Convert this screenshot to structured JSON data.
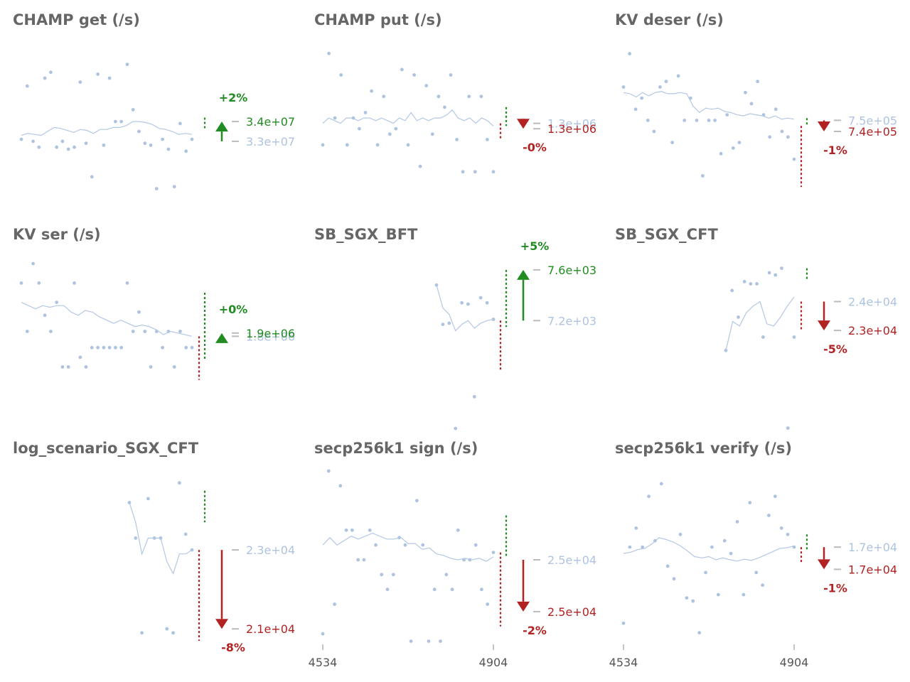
{
  "colors": {
    "points": "#aec3e0",
    "trend": "#b4c7e4",
    "up": "#228b22",
    "down": "#b22222",
    "title": "#666666",
    "tick": "#bbbbbb"
  },
  "x_ticks": [
    "4534",
    "4904"
  ],
  "chart_data": [
    {
      "type": "scatter",
      "title": "CHAMP get (/s)",
      "old_label": "3.3e+07",
      "new_label": "3.4e+07",
      "change": "+2%",
      "direction": "up",
      "ylim": [
        29000000.0,
        38000000.0
      ],
      "old_value": 33000000.0,
      "new_value": 34000000.0,
      "min_low": 33200000.0,
      "max_high": 34200000.0,
      "min_high": 33200000.0,
      "max_low": 33600000.0,
      "points": [
        33100000.0,
        35800000.0,
        33000000.0,
        32700000.0,
        36200000.0,
        36500000.0,
        32700000.0,
        33000000.0,
        32600000.0,
        32700000.0,
        36000000.0,
        32900000.0,
        31200000.0,
        36400000.0,
        32800000.0,
        36200000.0,
        34000000.0,
        34000000.0,
        36900000.0,
        34600000.0,
        33500000.0,
        32900000.0,
        32800000.0,
        30600000.0,
        33100000.0,
        32600000.0,
        30700000.0,
        33900000.0,
        32500000.0,
        33100000.0
      ],
      "trend": [
        33300000.0,
        33400000.0,
        33350000.0,
        33300000.0,
        33500000.0,
        33700000.0,
        33650000.0,
        33550000.0,
        33450000.0,
        33600000.0,
        33550000.0,
        33400000.0,
        33600000.0,
        33600000.0,
        33700000.0,
        33700000.0,
        33800000.0,
        34000000.0,
        34000000.0,
        33950000.0,
        33850000.0,
        33650000.0,
        33600000.0,
        33500000.0,
        33350000.0,
        33400000.0,
        33350000.0
      ]
    },
    {
      "type": "scatter",
      "title": "CHAMP put (/s)",
      "old_label": "1.3e+06",
      "new_label": "1.3e+06",
      "change": "-0%",
      "direction": "down",
      "ylim": [
        1120000.0,
        1450000.0
      ],
      "old_value": 1300000.0,
      "new_value": 1290000.0,
      "min_low": 1270000.0,
      "max_high": 1330000.0,
      "min_high": 1300000.0,
      "max_low": 1295000.0,
      "points": [
        1260000.0,
        1430000.0,
        1310000.0,
        1390000.0,
        1260000.0,
        1310000.0,
        1290000.0,
        1320000.0,
        1360000.0,
        1260000.0,
        1350000.0,
        1280000.0,
        1290000.0,
        1400000.0,
        1260000.0,
        1390000.0,
        1220000.0,
        1370000.0,
        1280000.0,
        1350000.0,
        1330000.0,
        1390000.0,
        1270000.0,
        1210000.0,
        1350000.0,
        1210000.0,
        1350000.0,
        1270000.0,
        1210000.0
      ],
      "trend": [
        1300000.0,
        1310000.0,
        1305000.0,
        1300000.0,
        1310000.0,
        1310000.0,
        1305000.0,
        1310000.0,
        1310000.0,
        1305000.0,
        1310000.0,
        1305000.0,
        1300000.0,
        1310000.0,
        1305000.0,
        1320000.0,
        1305000.0,
        1310000.0,
        1305000.0,
        1310000.0,
        1310000.0,
        1315000.0,
        1325000.0,
        1310000.0,
        1305000.0,
        1310000.0,
        1300000.0,
        1310000.0,
        1305000.0,
        1295000.0
      ]
    },
    {
      "type": "scatter",
      "title": "KV deser (/s)",
      "old_label": "7.5e+05",
      "new_label": "7.4e+05",
      "change": "-1%",
      "direction": "down",
      "ylim": [
        660000.0,
        820000.0
      ],
      "old_value": 750000.0,
      "new_value": 740000.0,
      "min_low": 690000.0,
      "max_high": 752000.0,
      "min_high": 745000.0,
      "max_low": 745000.0,
      "points": [
        780000.0,
        810000.0,
        760000.0,
        770000.0,
        750000.0,
        740000.0,
        780000.0,
        785000.0,
        730000.0,
        790000.0,
        750000.0,
        770000.0,
        750000.0,
        700000.0,
        750000.0,
        750000.0,
        720000.0,
        755000.0,
        725000.0,
        730000.0,
        775000.0,
        765000.0,
        785000.0,
        755000.0,
        735000.0,
        760000.0,
        740000.0,
        735000.0,
        715000.0
      ],
      "trend": [
        775000.0,
        774000.0,
        771000.0,
        775000.0,
        772000.0,
        775000.0,
        776000.0,
        774000.0,
        774000.0,
        775000.0,
        774000.0,
        763000.0,
        757000.0,
        761000.0,
        760000.0,
        761000.0,
        758000.0,
        757000.0,
        755000.0,
        754000.0,
        756000.0,
        755000.0,
        754000.0,
        752000.0,
        754000.0,
        751000.0,
        752000.0,
        751000.0
      ]
    },
    {
      "type": "scatter",
      "title": "KV ser (/s)",
      "old_label": "1.8e+06",
      "new_label": "1.9e+06",
      "change": "+0%",
      "direction": "up",
      "ylim": [
        1550000.0,
        2100000.0
      ],
      "old_value": 1855000.0,
      "new_value": 1865000.0,
      "min_low": 1720000.0,
      "max_high": 1990000.0,
      "min_high": 1855000.0,
      "max_low": 1785000.0,
      "points": [
        2020000.0,
        1870000.0,
        2080000.0,
        2020000.0,
        1920000.0,
        1870000.0,
        1960000.0,
        1760000.0,
        1760000.0,
        2020000.0,
        1790000.0,
        1760000.0,
        1820000.0,
        1820000.0,
        1820000.0,
        1820000.0,
        1820000.0,
        1820000.0,
        2020000.0,
        1870000.0,
        1930000.0,
        1870000.0,
        1760000.0,
        1870000.0,
        1820000.0,
        1870000.0,
        1760000.0,
        1870000.0,
        1820000.0,
        1820000.0
      ],
      "trend": [
        1960000.0,
        1950000.0,
        1940000.0,
        1950000.0,
        1945000.0,
        1950000.0,
        1950000.0,
        1930000.0,
        1920000.0,
        1935000.0,
        1930000.0,
        1915000.0,
        1905000.0,
        1895000.0,
        1905000.0,
        1895000.0,
        1885000.0,
        1890000.0,
        1885000.0,
        1875000.0,
        1860000.0,
        1870000.0,
        1865000.0,
        1860000.0,
        1855000.0
      ]
    },
    {
      "type": "scatter",
      "title": "SB_SGX_BFT",
      "old_label": "7.2e+03",
      "new_label": "7.6e+03",
      "change": "+5%",
      "direction": "up",
      "ylim": [
        6300.0,
        7700.0
      ],
      "old_value": 7200.0,
      "new_value": 7600.0,
      "min_low": 6800.0,
      "max_high": 7600.0,
      "min_high": 7200.0,
      "max_low": 7150.0,
      "points": [
        7480.0,
        7170.0,
        7180.0,
        6350.0,
        7340.0,
        7330.0,
        6600.0,
        7380.0,
        7340.0,
        7210.0
      ],
      "trend": [
        7480.0,
        7300.0,
        7250.0,
        7120.0,
        7170.0,
        7200.0,
        7140.0,
        7180.0,
        7200.0,
        7210.0
      ]
    },
    {
      "type": "scatter",
      "title": "SB_SGX_CFT",
      "old_label": "2.4e+04",
      "new_label": "2.3e+04",
      "change": "-5%",
      "direction": "down",
      "ylim": [
        18000.0,
        26000.0
      ],
      "old_value": 24000.0,
      "new_value": 22700.0,
      "min_low": 22700.0,
      "max_high": 25500.0,
      "min_high": 24000.0,
      "max_low": 25000.0,
      "points": [
        21800.0,
        24500.0,
        23300.0,
        24900.0,
        24800.0,
        24800.0,
        22400.0,
        25300.0,
        25200.0,
        25500.0,
        18300.0,
        22400.0
      ],
      "trend": [
        21800.0,
        23100.0,
        22900.0,
        23500.0,
        23800.0,
        24000.0,
        23000.0,
        22900.0,
        23300.0,
        23800.0,
        24200.0
      ]
    },
    {
      "type": "scatter",
      "title": "log_scenario_SGX_CFT",
      "old_label": "2.3e+04",
      "new_label": "2.1e+04",
      "change": "-8%",
      "direction": "down",
      "ylim": [
        20500.0,
        25000.0
      ],
      "old_value": 23000.0,
      "new_value": 21000.0,
      "min_low": 20700.0,
      "max_high": 24500.0,
      "min_high": 23000.0,
      "max_low": 23700.0,
      "points": [
        24200.0,
        23300.0,
        20900.0,
        24300.0,
        23300.0,
        23300.0,
        21000.0,
        20900.0,
        24700.0,
        23400.0,
        23000.0
      ],
      "trend": [
        24200.0,
        23700.0,
        22900.0,
        23300.0,
        23300.0,
        23300.0,
        22700.0,
        22400.0,
        22900.0,
        22900.0,
        23000.0
      ]
    },
    {
      "type": "scatter",
      "title": "secp256k1 sign (/s)",
      "old_label": "2.5e+04",
      "new_label": "2.5e+04",
      "change": "-2%",
      "direction": "down",
      "ylim": [
        24400.0,
        25600.0
      ],
      "old_value": 25000.0,
      "new_value": 24650.0,
      "min_low": 24550.0,
      "max_high": 25300.0,
      "min_high": 25050.0,
      "max_low": 25020.0,
      "points": [
        24500.0,
        25600.0,
        24700.0,
        25500.0,
        25200.0,
        25200.0,
        25000.0,
        25000.0,
        25200.0,
        25100.0,
        24900.0,
        24800.0,
        24900.0,
        25150.0,
        25100.0,
        24450.0,
        25400.0,
        25100.0,
        24450.0,
        24800.0,
        24450.0,
        24900.0,
        24800.0,
        25200.0,
        25000.0,
        25000.0,
        25100.0,
        24800.0,
        24700.0,
        25050.0
      ],
      "trend": [
        25100.0,
        25150.0,
        25100.0,
        25130.0,
        25160.0,
        25140.0,
        25160.0,
        25180.0,
        25160.0,
        25140.0,
        25140.0,
        25150.0,
        25110.0,
        25110.0,
        25070.0,
        25080.0,
        25040.0,
        25030.0,
        25010.0,
        25000.0,
        25010.0,
        25000.0,
        25010.0,
        24990.0,
        25020.0
      ]
    },
    {
      "type": "scatter",
      "title": "secp256k1 verify (/s)",
      "old_label": "1.7e+04",
      "new_label": "1.7e+04",
      "change": "-1%",
      "direction": "down",
      "ylim": [
        15600.0,
        18400.0
      ],
      "old_value": 17200.0,
      "new_value": 16850.0,
      "min_low": 16950.0,
      "max_high": 17400.0,
      "min_high": 17200.0,
      "max_low": 17150.0,
      "points": [
        16000.0,
        17200.0,
        17500.0,
        17200.0,
        18000.0,
        17300.0,
        18200.0,
        16900.0,
        16700.0,
        17400.0,
        16400.0,
        16350.0,
        15850.0,
        16800.0,
        17200.0,
        16450.0,
        17300.0,
        17100.0,
        17600.0,
        16450.0,
        17900.0,
        16800.0,
        16600.0,
        17700.0,
        18000.0,
        17500.0,
        17400.0,
        17200.0
      ],
      "trend": [
        17100.0,
        17120.0,
        17160.0,
        17180.0,
        17250.0,
        17350.0,
        17320.0,
        17280.0,
        17220.0,
        17140.0,
        17050.0,
        17030.0,
        17050.0,
        17000.0,
        17030.0,
        17000.0,
        16980.0,
        17010.0,
        16990.0,
        17030.0,
        17080.0,
        17130.0,
        17180.0,
        17190.0,
        17220.0
      ]
    }
  ]
}
